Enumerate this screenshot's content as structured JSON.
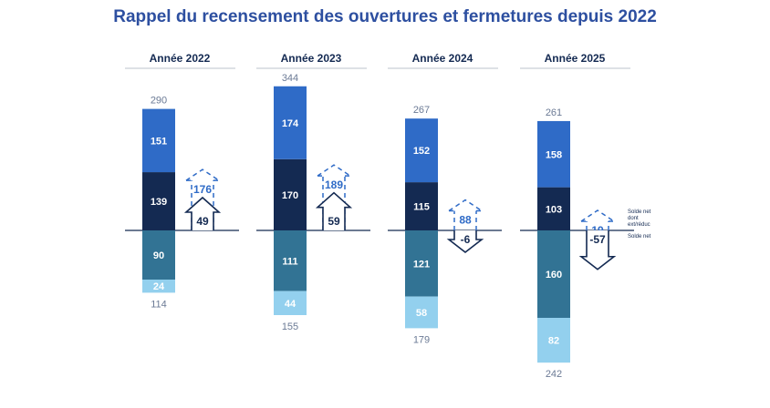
{
  "chart_data": {
    "type": "bar",
    "title": "Rappel du recensement des ouvertures et fermetures depuis 2022",
    "categories": [
      "Année 2022",
      "Année 2023",
      "Année 2024",
      "Année 2025"
    ],
    "series": [
      {
        "role": "positive-upper",
        "color": "#2f6bc7",
        "values": [
          151,
          174,
          152,
          158
        ]
      },
      {
        "role": "positive-lower",
        "color": "#142a52",
        "values": [
          139,
          170,
          115,
          103
        ]
      },
      {
        "role": "negative-upper",
        "color": "#327394",
        "values": [
          90,
          111,
          121,
          160
        ]
      },
      {
        "role": "negative-lower",
        "color": "#93d0ee",
        "values": [
          24,
          44,
          58,
          82
        ]
      }
    ],
    "positive_totals": [
      290,
      344,
      267,
      261
    ],
    "negative_totals": [
      114,
      155,
      179,
      242
    ],
    "solde_net_dont_ext_reduc": [
      176,
      189,
      88,
      19
    ],
    "solde_net": [
      49,
      59,
      -6,
      -57
    ],
    "legend": {
      "dashed": "Solde net dont ext/réduc",
      "solid": "Solde net"
    },
    "colors": {
      "title": "#2d4fa0",
      "total_label": "#6b7a95",
      "arrow_dashed": "#2f6bc7",
      "arrow_solid": "#142a52",
      "header_rule": "#dde1e6"
    }
  }
}
